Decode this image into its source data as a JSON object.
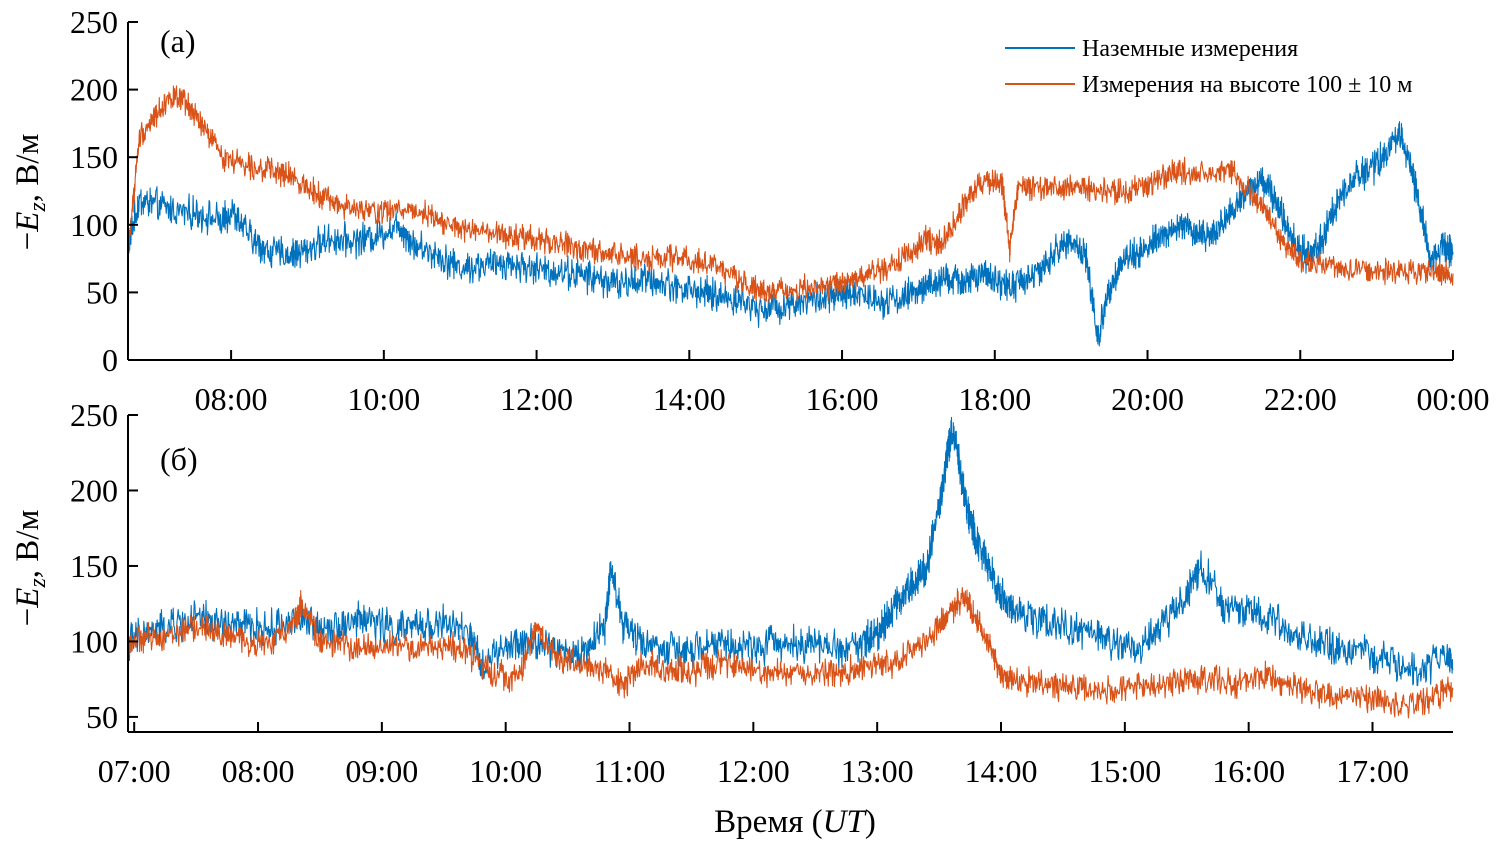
{
  "legend": {
    "entries": [
      {
        "label": "Наземные измерения",
        "color": "#0072bd"
      },
      {
        "label": "Измерения на высоте 100 ± 10 м",
        "color": "#d95319"
      }
    ]
  },
  "chart_data": [
    {
      "type": "line",
      "panel_label": "(а)",
      "ylabel_prefix": "−",
      "ylabel_var": "E",
      "ylabel_sub": "z",
      "ylabel_unit": ", В/м",
      "ylim": [
        0,
        250
      ],
      "yticks": [
        0,
        50,
        100,
        150,
        200,
        250
      ],
      "xlim": [
        6.65,
        24.0
      ],
      "xticks": [
        8,
        10,
        12,
        14,
        16,
        18,
        20,
        22,
        24
      ],
      "xtick_labels": [
        "08:00",
        "10:00",
        "12:00",
        "14:00",
        "16:00",
        "18:00",
        "20:00",
        "22:00",
        "00:00"
      ],
      "legend_position": "top-right",
      "series": [
        {
          "name": "Наземные измерения",
          "color": "#0072bd",
          "x": [
            6.65,
            6.8,
            7.0,
            7.3,
            7.6,
            7.9,
            8.0,
            8.3,
            8.5,
            8.8,
            9.0,
            9.3,
            9.6,
            9.9,
            10.2,
            10.4,
            10.7,
            11.0,
            11.3,
            11.6,
            11.9,
            12.2,
            12.5,
            12.8,
            13.1,
            13.4,
            13.7,
            14.0,
            14.3,
            14.6,
            14.9,
            15.2,
            15.5,
            15.8,
            16.0,
            16.2,
            16.5,
            16.8,
            17.0,
            17.2,
            17.4,
            17.6,
            17.8,
            18.0,
            18.2,
            18.4,
            18.6,
            18.8,
            19.0,
            19.2,
            19.35,
            19.5,
            19.7,
            19.9,
            20.1,
            20.3,
            20.5,
            20.7,
            20.9,
            21.1,
            21.3,
            21.5,
            21.7,
            21.9,
            22.1,
            22.3,
            22.5,
            22.7,
            22.9,
            23.1,
            23.3,
            23.5,
            23.7,
            23.85,
            24.0
          ],
          "y": [
            85,
            118,
            115,
            110,
            108,
            102,
            110,
            88,
            80,
            78,
            82,
            90,
            88,
            92,
            100,
            85,
            78,
            68,
            70,
            72,
            68,
            66,
            64,
            60,
            56,
            60,
            56,
            52,
            48,
            45,
            38,
            40,
            44,
            46,
            47,
            50,
            44,
            46,
            52,
            56,
            60,
            58,
            62,
            60,
            54,
            60,
            65,
            80,
            90,
            75,
            15,
            55,
            75,
            80,
            88,
            95,
            100,
            90,
            95,
            110,
            125,
            135,
            115,
            90,
            75,
            90,
            120,
            135,
            140,
            150,
            170,
            130,
            75,
            85,
            80
          ]
        },
        {
          "name": "Измерения на высоте 100 ± 10 м",
          "color": "#d95319",
          "x": [
            6.65,
            6.8,
            7.0,
            7.2,
            7.4,
            7.6,
            7.9,
            8.2,
            8.5,
            8.8,
            9.1,
            9.4,
            9.7,
            10.0,
            10.3,
            10.6,
            10.9,
            11.2,
            11.5,
            11.8,
            12.1,
            12.4,
            12.7,
            13.0,
            13.3,
            13.6,
            13.9,
            14.2,
            14.5,
            14.8,
            15.0,
            15.3,
            15.6,
            15.9,
            16.1,
            16.3,
            16.6,
            16.9,
            17.1,
            17.3,
            17.5,
            17.7,
            17.9,
            18.1,
            18.2,
            18.3,
            18.5,
            18.8,
            19.1,
            19.4,
            19.7,
            20.0,
            20.3,
            20.5,
            20.8,
            21.1,
            21.4,
            21.6,
            21.8,
            22.0,
            22.3,
            22.6,
            22.9,
            23.2,
            23.5,
            23.8,
            24.0
          ],
          "y": [
            80,
            165,
            180,
            195,
            190,
            175,
            150,
            145,
            140,
            135,
            125,
            115,
            110,
            110,
            112,
            108,
            98,
            95,
            92,
            90,
            88,
            85,
            80,
            78,
            76,
            75,
            76,
            72,
            65,
            55,
            50,
            52,
            54,
            55,
            58,
            62,
            68,
            80,
            90,
            85,
            105,
            125,
            132,
            130,
            80,
            128,
            128,
            127,
            128,
            125,
            125,
            130,
            138,
            140,
            135,
            140,
            120,
            105,
            85,
            72,
            70,
            68,
            66,
            65,
            66,
            66,
            64
          ]
        }
      ]
    },
    {
      "type": "line",
      "panel_label": "(б)",
      "ylabel_prefix": "−",
      "ylabel_var": "E",
      "ylabel_sub": "z",
      "ylabel_unit": ", В/м",
      "ylim": [
        40,
        250
      ],
      "yticks": [
        50,
        100,
        150,
        200,
        250
      ],
      "xlim": [
        6.95,
        17.65
      ],
      "xticks": [
        7,
        8,
        9,
        10,
        11,
        12,
        13,
        14,
        15,
        16,
        17
      ],
      "xtick_labels": [
        "07:00",
        "08:00",
        "09:00",
        "10:00",
        "11:00",
        "12:00",
        "13:00",
        "14:00",
        "15:00",
        "16:00",
        "17:00"
      ],
      "xlabel_prefix": "Время (",
      "xlabel_var": "UT",
      "xlabel_suffix": ")",
      "series": [
        {
          "name": "Наземные измерения",
          "color": "#0072bd",
          "x": [
            6.95,
            7.1,
            7.3,
            7.5,
            7.7,
            7.9,
            8.1,
            8.3,
            8.5,
            8.7,
            8.9,
            9.1,
            9.3,
            9.5,
            9.7,
            9.8,
            10.0,
            10.2,
            10.4,
            10.6,
            10.8,
            10.85,
            10.95,
            11.1,
            11.3,
            11.5,
            11.7,
            11.9,
            12.1,
            12.3,
            12.5,
            12.7,
            12.9,
            13.0,
            13.1,
            13.2,
            13.3,
            13.4,
            13.5,
            13.55,
            13.6,
            13.65,
            13.7,
            13.75,
            13.8,
            13.9,
            14.0,
            14.1,
            14.3,
            14.5,
            14.7,
            14.9,
            15.1,
            15.3,
            15.5,
            15.6,
            15.8,
            16.0,
            16.2,
            16.4,
            16.6,
            16.8,
            17.0,
            17.2,
            17.4,
            17.6,
            17.65
          ],
          "y": [
            100,
            105,
            110,
            115,
            112,
            110,
            108,
            115,
            110,
            112,
            115,
            108,
            110,
            112,
            105,
            85,
            95,
            100,
            95,
            90,
            110,
            150,
            110,
            100,
            95,
            92,
            100,
            95,
            98,
            100,
            98,
            95,
            100,
            105,
            120,
            130,
            140,
            150,
            190,
            215,
            240,
            225,
            200,
            180,
            170,
            150,
            130,
            120,
            115,
            110,
            105,
            100,
            95,
            110,
            130,
            150,
            125,
            120,
            115,
            100,
            98,
            95,
            90,
            85,
            80,
            90,
            82
          ]
        },
        {
          "name": "Измерения на высоте 100 ± 10 м",
          "color": "#d95319",
          "x": [
            6.95,
            7.1,
            7.3,
            7.5,
            7.7,
            7.9,
            8.1,
            8.3,
            8.35,
            8.5,
            8.7,
            8.9,
            9.1,
            9.3,
            9.5,
            9.7,
            9.9,
            10.1,
            10.25,
            10.4,
            10.6,
            10.8,
            10.95,
            11.1,
            11.3,
            11.5,
            11.7,
            11.9,
            12.1,
            12.3,
            12.5,
            12.7,
            12.9,
            13.1,
            13.3,
            13.5,
            13.6,
            13.7,
            13.8,
            13.9,
            14.0,
            14.1,
            14.3,
            14.5,
            14.7,
            14.9,
            15.1,
            15.3,
            15.5,
            15.7,
            15.9,
            16.1,
            16.3,
            16.5,
            16.7,
            16.9,
            17.1,
            17.3,
            17.5,
            17.65
          ],
          "y": [
            100,
            102,
            105,
            110,
            105,
            100,
            98,
            115,
            125,
            100,
            98,
            95,
            98,
            95,
            98,
            92,
            80,
            75,
            110,
            90,
            85,
            80,
            70,
            85,
            82,
            80,
            85,
            82,
            78,
            80,
            78,
            80,
            82,
            85,
            95,
            110,
            120,
            130,
            115,
            100,
            78,
            75,
            72,
            70,
            68,
            68,
            70,
            72,
            75,
            74,
            72,
            78,
            72,
            68,
            64,
            62,
            60,
            58,
            64,
            68
          ]
        }
      ]
    }
  ]
}
